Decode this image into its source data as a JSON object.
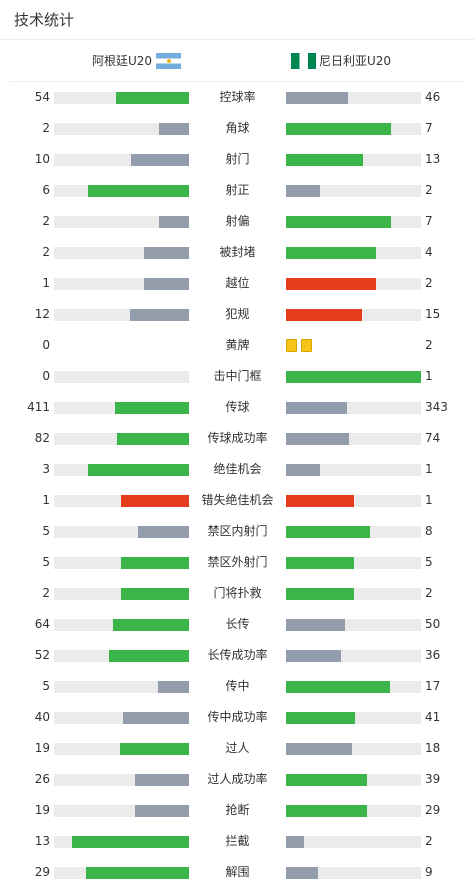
{
  "header": {
    "title": "技术统计"
  },
  "teams": {
    "home": "阿根廷U20",
    "away": "尼日利亚U20"
  },
  "colors": {
    "green": "#3bb54a",
    "gray": "#939cab",
    "red": "#e43d1d",
    "track": "#ebebeb",
    "yellow_card": "#f5c518"
  },
  "stats": [
    {
      "label": "控球率",
      "home": "54",
      "away": "46",
      "home_pct": 0.54,
      "away_pct": 0.46,
      "home_color": "green",
      "away_color": "gray"
    },
    {
      "label": "角球",
      "home": "2",
      "away": "7",
      "home_pct": 0.22,
      "away_pct": 0.78,
      "home_color": "gray",
      "away_color": "green"
    },
    {
      "label": "射门",
      "home": "10",
      "away": "13",
      "home_pct": 0.43,
      "away_pct": 0.57,
      "home_color": "gray",
      "away_color": "green"
    },
    {
      "label": "射正",
      "home": "6",
      "away": "2",
      "home_pct": 0.75,
      "away_pct": 0.25,
      "home_color": "green",
      "away_color": "gray"
    },
    {
      "label": "射偏",
      "home": "2",
      "away": "7",
      "home_pct": 0.22,
      "away_pct": 0.78,
      "home_color": "gray",
      "away_color": "green"
    },
    {
      "label": "被封堵",
      "home": "2",
      "away": "4",
      "home_pct": 0.33,
      "away_pct": 0.67,
      "home_color": "gray",
      "away_color": "green"
    },
    {
      "label": "越位",
      "home": "1",
      "away": "2",
      "home_pct": 0.33,
      "away_pct": 0.67,
      "home_color": "gray",
      "away_color": "red"
    },
    {
      "label": "犯规",
      "home": "12",
      "away": "15",
      "home_pct": 0.44,
      "away_pct": 0.56,
      "home_color": "gray",
      "away_color": "red"
    },
    {
      "label": "黄牌",
      "home": "0",
      "away": "2",
      "home_pct": 0,
      "away_pct": 0,
      "home_color": "none",
      "away_color": "none",
      "away_cards": 2
    },
    {
      "label": "击中门框",
      "home": "0",
      "away": "1",
      "home_pct": 0,
      "away_pct": 1,
      "home_color": "gray",
      "away_color": "green"
    },
    {
      "label": "传球",
      "home": "411",
      "away": "343",
      "home_pct": 0.55,
      "away_pct": 0.45,
      "home_color": "green",
      "away_color": "gray"
    },
    {
      "label": "传球成功率",
      "home": "82",
      "away": "74",
      "home_pct": 0.53,
      "away_pct": 0.47,
      "home_color": "green",
      "away_color": "gray"
    },
    {
      "label": "绝佳机会",
      "home": "3",
      "away": "1",
      "home_pct": 0.75,
      "away_pct": 0.25,
      "home_color": "green",
      "away_color": "gray"
    },
    {
      "label": "错失绝佳机会",
      "home": "1",
      "away": "1",
      "home_pct": 0.5,
      "away_pct": 0.5,
      "home_color": "red",
      "away_color": "red"
    },
    {
      "label": "禁区内射门",
      "home": "5",
      "away": "8",
      "home_pct": 0.38,
      "away_pct": 0.62,
      "home_color": "gray",
      "away_color": "green"
    },
    {
      "label": "禁区外射门",
      "home": "5",
      "away": "5",
      "home_pct": 0.5,
      "away_pct": 0.5,
      "home_color": "green",
      "away_color": "green"
    },
    {
      "label": "门将扑救",
      "home": "2",
      "away": "2",
      "home_pct": 0.5,
      "away_pct": 0.5,
      "home_color": "green",
      "away_color": "green"
    },
    {
      "label": "长传",
      "home": "64",
      "away": "50",
      "home_pct": 0.56,
      "away_pct": 0.44,
      "home_color": "green",
      "away_color": "gray"
    },
    {
      "label": "长传成功率",
      "home": "52",
      "away": "36",
      "home_pct": 0.59,
      "away_pct": 0.41,
      "home_color": "green",
      "away_color": "gray"
    },
    {
      "label": "传中",
      "home": "5",
      "away": "17",
      "home_pct": 0.23,
      "away_pct": 0.77,
      "home_color": "gray",
      "away_color": "green"
    },
    {
      "label": "传中成功率",
      "home": "40",
      "away": "41",
      "home_pct": 0.49,
      "away_pct": 0.51,
      "home_color": "gray",
      "away_color": "green"
    },
    {
      "label": "过人",
      "home": "19",
      "away": "18",
      "home_pct": 0.51,
      "away_pct": 0.49,
      "home_color": "green",
      "away_color": "gray"
    },
    {
      "label": "过人成功率",
      "home": "26",
      "away": "39",
      "home_pct": 0.4,
      "away_pct": 0.6,
      "home_color": "gray",
      "away_color": "green"
    },
    {
      "label": "抢断",
      "home": "19",
      "away": "29",
      "home_pct": 0.4,
      "away_pct": 0.6,
      "home_color": "gray",
      "away_color": "green"
    },
    {
      "label": "拦截",
      "home": "13",
      "away": "2",
      "home_pct": 0.87,
      "away_pct": 0.13,
      "home_color": "green",
      "away_color": "gray"
    },
    {
      "label": "解围",
      "home": "29",
      "away": "9",
      "home_pct": 0.76,
      "away_pct": 0.24,
      "home_color": "green",
      "away_color": "gray"
    }
  ]
}
